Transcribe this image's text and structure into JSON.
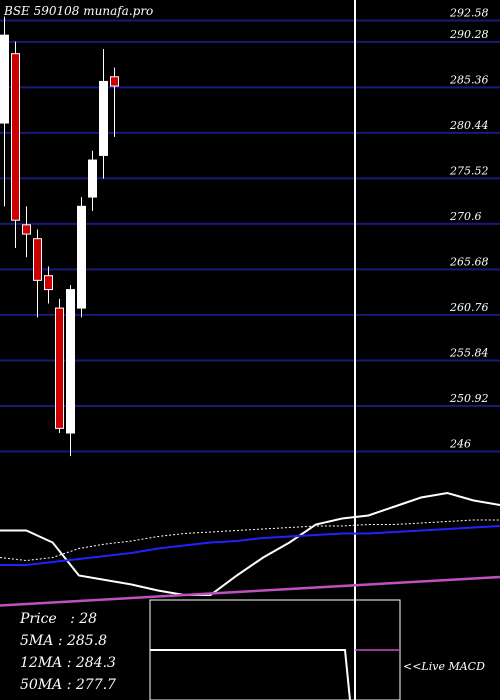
{
  "chart_data": [
    {
      "type": "candlestick",
      "title": "BSE 590108 munafa.pro",
      "ylim": [
        244.0,
        294.8
      ],
      "yticks": [
        292.58,
        290.28,
        285.36,
        280.44,
        275.52,
        270.6,
        265.68,
        260.76,
        255.84,
        250.92,
        246
      ],
      "ytick_labels": [
        "292.58",
        "290.28",
        "285.36",
        "280.44",
        "275.52",
        "270.6",
        "265.68",
        "260.76",
        "255.84",
        "250.92",
        "246"
      ],
      "grid": true,
      "candles": [
        {
          "open": 291.0,
          "high": 293.0,
          "low": 272.5,
          "close": 281.5,
          "color": "white"
        },
        {
          "open": 289.0,
          "high": 290.3,
          "low": 268.0,
          "close": 271.0,
          "color": "red"
        },
        {
          "open": 270.5,
          "high": 272.5,
          "low": 267.0,
          "close": 269.5,
          "color": "red"
        },
        {
          "open": 269.0,
          "high": 270.0,
          "low": 260.5,
          "close": 264.5,
          "color": "red"
        },
        {
          "open": 265.0,
          "high": 266.0,
          "low": 262.0,
          "close": 263.5,
          "color": "red"
        },
        {
          "open": 261.5,
          "high": 262.5,
          "low": 248.0,
          "close": 248.5,
          "color": "red"
        },
        {
          "open": 248.0,
          "high": 264.0,
          "low": 245.5,
          "close": 263.5,
          "color": "white"
        },
        {
          "open": 261.5,
          "high": 273.5,
          "low": 260.5,
          "close": 272.5,
          "color": "white"
        },
        {
          "open": 273.5,
          "high": 278.5,
          "low": 272.0,
          "close": 277.5,
          "color": "white"
        },
        {
          "open": 278.0,
          "high": 289.5,
          "low": 275.5,
          "close": 286.0,
          "color": "white"
        },
        {
          "open": 286.5,
          "high": 287.5,
          "low": 280.0,
          "close": 285.5,
          "color": "red"
        }
      ]
    },
    {
      "type": "line",
      "series": [
        {
          "values": [
            48,
            48,
            40,
            18,
            15,
            12,
            8,
            5,
            5,
            18,
            30,
            40,
            52,
            56,
            58,
            64,
            70,
            73,
            68,
            65
          ],
          "color": "#ffffff"
        },
        {
          "values": [
            30,
            28,
            30,
            36,
            39,
            41,
            44,
            46,
            47,
            48,
            49,
            50,
            51,
            51,
            52,
            52,
            53,
            54,
            55,
            55
          ],
          "color": "#ffffff"
        },
        {
          "values": [
            25,
            25,
            27,
            29,
            31,
            33,
            36,
            38,
            40,
            41,
            43,
            44,
            45,
            46,
            46,
            47,
            48,
            49,
            50,
            51
          ],
          "color": "#2222ff"
        },
        {
          "values": [
            -2,
            -1,
            0,
            1,
            2,
            3,
            4,
            5,
            6,
            7,
            8,
            9,
            10,
            11,
            12,
            13,
            14,
            15,
            16,
            17
          ],
          "color": "#c050c0"
        }
      ],
      "grid": false
    },
    {
      "type": "line",
      "series": [
        {
          "values": [
            50,
            50,
            50,
            50,
            50,
            50,
            50,
            50,
            50,
            50,
            50,
            50,
            50,
            50,
            50,
            50,
            50,
            50,
            48,
            45
          ],
          "color": "#ffffff"
        },
        {
          "values": [
            50,
            50
          ],
          "color": "#c050c0"
        }
      ]
    }
  ],
  "stats": [
    {
      "label": "Price",
      "value": ": 28"
    },
    {
      "label": "5MA",
      "value": ": 285.8"
    },
    {
      "label": "12MA",
      "value": ": 284.3"
    },
    {
      "label": "50MA",
      "value": ": 277.7"
    }
  ],
  "macd_label": "<<Live MACD"
}
